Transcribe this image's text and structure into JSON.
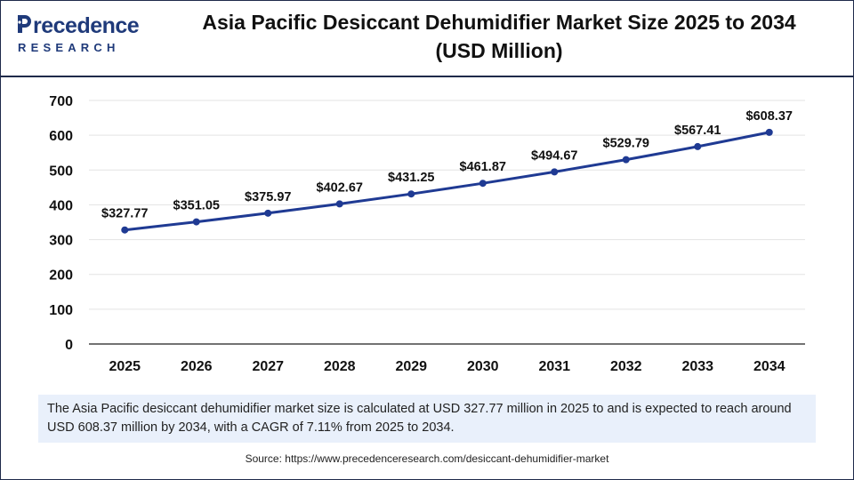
{
  "header": {
    "logo_top": "recedence",
    "logo_bottom": "RESEARCH",
    "title_line1": "Asia Pacific Desiccant Dehumidifier Market Size 2025 to 2034",
    "title_line2": "(USD Million)"
  },
  "chart_data": {
    "type": "line",
    "title": "Asia Pacific Desiccant Dehumidifier Market Size 2025 to 2034 (USD Million)",
    "categories": [
      "2025",
      "2026",
      "2027",
      "2028",
      "2029",
      "2030",
      "2031",
      "2032",
      "2033",
      "2034"
    ],
    "series": [
      {
        "values": [
          327.77,
          351.05,
          375.97,
          402.67,
          431.25,
          461.87,
          494.67,
          529.79,
          567.41,
          608.37
        ],
        "labels": [
          "$327.77",
          "$351.05",
          "$375.97",
          "$402.67",
          "$431.25",
          "$461.87",
          "$494.67",
          "$529.79",
          "$567.41",
          "$608.37"
        ]
      }
    ],
    "ylim": [
      0,
      700
    ],
    "yticks": [
      "0",
      "100",
      "200",
      "300",
      "400",
      "500",
      "600",
      "700"
    ],
    "grid": true,
    "colors": {
      "line": "#1f3a93",
      "grid": "#e3e3e3",
      "axis": "#444444"
    }
  },
  "caption": "The Asia Pacific desiccant dehumidifier market size is calculated at USD 327.77 million in 2025 to and is expected to reach around USD 608.37 million by 2034, with a CAGR of 7.11% from 2025 to 2034.",
  "source": "Source: https://www.precedenceresearch.com/desiccant-dehumidifier-market"
}
